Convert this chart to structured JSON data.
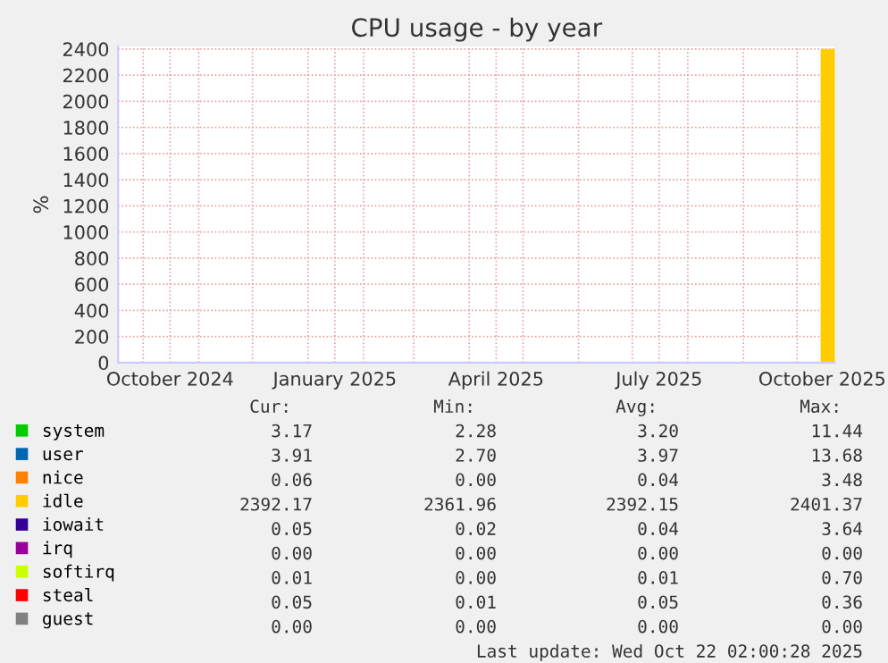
{
  "chart_data": {
    "type": "area",
    "title": "CPU usage - by year",
    "ylabel": "%",
    "x": [
      "2025-10-15",
      "2025-10-22"
    ],
    "series": [
      {
        "name": "system",
        "color": "#00cc00",
        "values": [
          null,
          null
        ]
      },
      {
        "name": "user",
        "color": "#0066b3",
        "values": [
          null,
          null
        ]
      },
      {
        "name": "nice",
        "color": "#ff8000",
        "values": [
          null,
          null
        ]
      },
      {
        "name": "idle",
        "color": "#ffcc00",
        "values": [
          2390,
          2390
        ]
      },
      {
        "name": "iowait",
        "color": "#330099",
        "values": [
          null,
          null
        ]
      },
      {
        "name": "irq",
        "color": "#990099",
        "values": [
          null,
          null
        ]
      },
      {
        "name": "softirq",
        "color": "#ccff00",
        "values": [
          null,
          null
        ]
      },
      {
        "name": "steal",
        "color": "#ff0000",
        "values": [
          null,
          null
        ]
      },
      {
        "name": "guest",
        "color": "#808080",
        "values": [
          null,
          null
        ]
      }
    ],
    "xlim": [
      "2024-09-17",
      "2025-10-22"
    ],
    "xticks": [
      {
        "value": "2024-10-01",
        "label": null
      },
      {
        "value": "2024-10-16",
        "label": "October 2024"
      },
      {
        "value": "2024-11-01",
        "label": null
      },
      {
        "value": "2024-12-01",
        "label": null
      },
      {
        "value": "2025-01-01",
        "label": null
      },
      {
        "value": "2025-01-16",
        "label": "January 2025"
      },
      {
        "value": "2025-02-01",
        "label": null
      },
      {
        "value": "2025-03-01",
        "label": null
      },
      {
        "value": "2025-04-01",
        "label": null
      },
      {
        "value": "2025-04-16",
        "label": "April 2025"
      },
      {
        "value": "2025-05-01",
        "label": null
      },
      {
        "value": "2025-06-01",
        "label": null
      },
      {
        "value": "2025-07-01",
        "label": null
      },
      {
        "value": "2025-07-16",
        "label": "July 2025"
      },
      {
        "value": "2025-08-01",
        "label": null
      },
      {
        "value": "2025-09-01",
        "label": null
      },
      {
        "value": "2025-10-01",
        "label": null
      },
      {
        "value": "2025-10-15",
        "label": "October 2025"
      }
    ],
    "ylim": [
      0,
      2420
    ],
    "yticks": [
      0,
      200,
      400,
      600,
      800,
      1000,
      1200,
      1400,
      1600,
      1800,
      2000,
      2200,
      2400
    ],
    "grid": true,
    "legend": "bottom",
    "annotations": [
      "Cur:",
      "Min:",
      "Avg:",
      "Max:",
      "3.17",
      "2.28",
      "3.20",
      "11.44",
      "3.91",
      "2.70",
      "3.97",
      "13.68",
      "0.06",
      "0.00",
      "0.04",
      "3.48",
      "2392.17",
      "2361.96",
      "2392.15",
      "2401.37",
      "0.05",
      "0.02",
      "0.04",
      "3.64",
      "0.00",
      "0.00",
      "0.00",
      "0.00",
      "0.01",
      "0.00",
      "0.01",
      "0.70",
      "0.05",
      "0.01",
      "0.05",
      "0.36",
      "0.00",
      "0.00",
      "0.00",
      "0.00",
      "Last update: Wed Oct 22 02:00:28 2025"
    ]
  }
}
